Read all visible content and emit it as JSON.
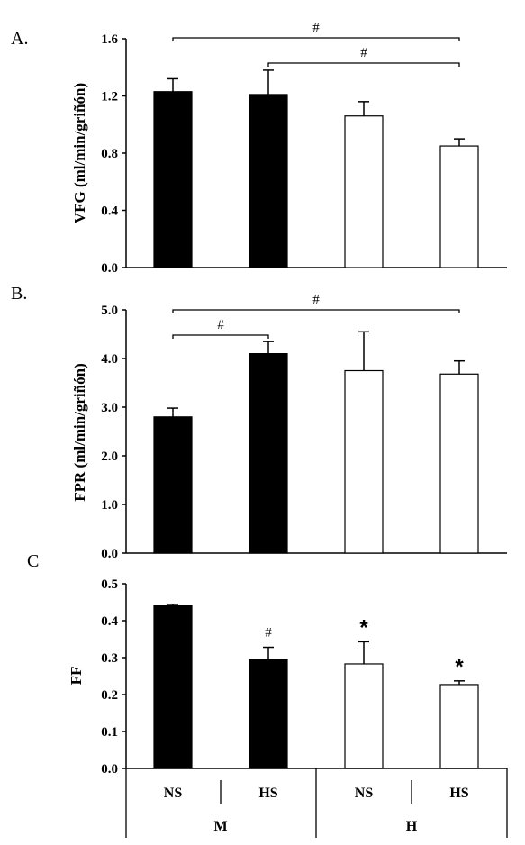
{
  "chart_data": [
    {
      "type": "bar",
      "panel_letter": "A.",
      "ylabel": "VFG (ml/min/griñón)",
      "ylim": [
        0,
        1.6
      ],
      "yticks": [
        "0.0",
        "0.4",
        "0.8",
        "1.2",
        "1.6"
      ],
      "categories": [
        "M NS",
        "M HS",
        "H NS",
        "H HS"
      ],
      "values": [
        1.23,
        1.21,
        1.06,
        0.85
      ],
      "errors": [
        0.09,
        0.17,
        0.1,
        0.05
      ],
      "fills": [
        "#000000",
        "#000000",
        "#ffffff",
        "#ffffff"
      ],
      "brackets": [
        {
          "from": 0,
          "to": 3,
          "label": "#"
        },
        {
          "from": 1,
          "to": 3,
          "label": "#"
        }
      ],
      "annotations": []
    },
    {
      "type": "bar",
      "panel_letter": "B.",
      "ylabel": "FPR (ml/min/griñón)",
      "ylim": [
        0,
        5.0
      ],
      "yticks": [
        "0.0",
        "1.0",
        "2.0",
        "3.0",
        "4.0",
        "5.0"
      ],
      "categories": [
        "M NS",
        "M HS",
        "H NS",
        "H HS"
      ],
      "values": [
        2.8,
        4.1,
        3.75,
        3.68
      ],
      "errors": [
        0.18,
        0.25,
        0.8,
        0.27
      ],
      "fills": [
        "#000000",
        "#000000",
        "#ffffff",
        "#ffffff"
      ],
      "brackets": [
        {
          "from": 0,
          "to": 3,
          "label": "#"
        },
        {
          "from": 0,
          "to": 1,
          "label": "#"
        }
      ],
      "annotations": []
    },
    {
      "type": "bar",
      "panel_letter": "C",
      "ylabel": "FF",
      "ylim": [
        0,
        0.5
      ],
      "yticks": [
        "0.0",
        "0.1",
        "0.2",
        "0.3",
        "0.4",
        "0.5"
      ],
      "categories": [
        "M NS",
        "M HS",
        "H NS",
        "H HS"
      ],
      "values": [
        0.44,
        0.295,
        0.283,
        0.227
      ],
      "errors": [
        0.004,
        0.033,
        0.06,
        0.01
      ],
      "fills": [
        "#000000",
        "#000000",
        "#ffffff",
        "#ffffff"
      ],
      "brackets": [],
      "annotations": [
        {
          "bar": 1,
          "label": "#"
        },
        {
          "bar": 2,
          "label": "*"
        },
        {
          "bar": 3,
          "label": "*"
        }
      ]
    }
  ],
  "x_groups": {
    "diet_labels": [
      "NS",
      "HS",
      "NS",
      "HS"
    ],
    "group_labels": [
      "M",
      "H"
    ]
  }
}
